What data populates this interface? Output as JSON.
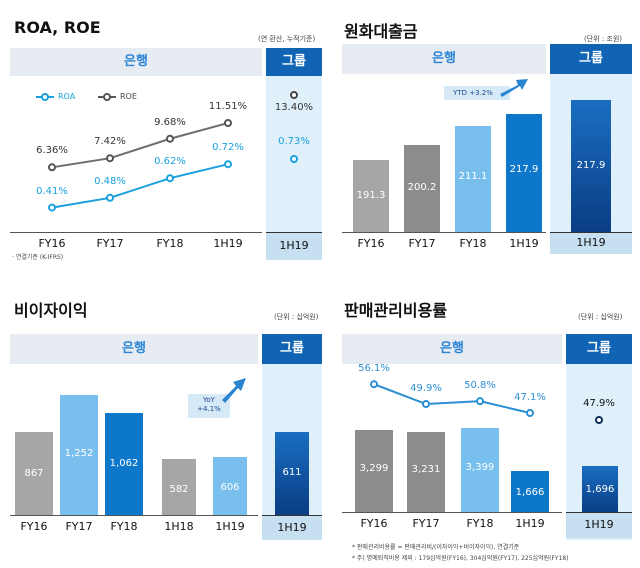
{
  "panels": {
    "roa": {
      "title": "ROA, ROE",
      "unit": "(연 환산, 누적기준)",
      "bank": "은행",
      "group": "그룹",
      "legend_roa": "ROA",
      "legend_roe": "ROE",
      "note": "· 연결기준 (K-IFRS)",
      "group_period": "1H19",
      "group_roe": "13.40%",
      "group_roa": "0.73%"
    },
    "loans": {
      "title": "원화대출금",
      "unit": "(단위 : 조원)",
      "bank": "은행",
      "group": "그룹",
      "tag": "YTD +3.2%",
      "group_period": "1H19",
      "group_value": "217.9"
    },
    "nii": {
      "title": "비이자이익",
      "unit": "(단위 : 십억원)",
      "bank": "은행",
      "group": "그룹",
      "tag_line1": "YoY",
      "tag_line2": "+4.1%",
      "group_period": "1H19",
      "group_value": "611"
    },
    "cir": {
      "title": "판매관리비용률",
      "unit": "(단위 : 십억원)",
      "bank": "은행",
      "group": "그룹",
      "note1": "*  판매관리비용률 = 판매관리비/(이자이익+비이자이익), 연결기준",
      "note2": "*  주) 명예퇴직비용 제외 : 179십억원(FY16), 304십억원(FY17), 225십억원(FY18)",
      "group_period": "1H19",
      "group_ratio": "47.9%",
      "group_value": "1,696"
    }
  },
  "chart_data": [
    {
      "type": "line",
      "title": "ROA, ROE",
      "categories": [
        "FY16",
        "FY17",
        "FY18",
        "1H19"
      ],
      "series": [
        {
          "name": "ROE",
          "values": [
            6.36,
            7.42,
            9.68,
            11.51
          ],
          "labels": [
            "6.36%",
            "7.42%",
            "9.68%",
            "11.51%"
          ]
        },
        {
          "name": "ROA",
          "values": [
            0.41,
            0.48,
            0.62,
            0.72
          ],
          "labels": [
            "0.41%",
            "0.48%",
            "0.62%",
            "0.72%"
          ]
        }
      ],
      "group": {
        "category": "1H19",
        "ROE": 13.4,
        "ROA": 0.73
      }
    },
    {
      "type": "bar",
      "title": "원화대출금",
      "categories": [
        "FY16",
        "FY17",
        "FY18",
        "1H19"
      ],
      "values": [
        191.3,
        200.2,
        211.1,
        217.9
      ],
      "labels": [
        "191.3",
        "200.2",
        "211.1",
        "217.9"
      ],
      "ylim": [
        150,
        225
      ],
      "group": {
        "category": "1H19",
        "value": 217.9
      }
    },
    {
      "type": "bar",
      "title": "비이자이익",
      "categories": [
        "FY16",
        "FY17",
        "FY18",
        "1H18",
        "1H19"
      ],
      "values": [
        867,
        1252,
        1062,
        582,
        606
      ],
      "labels": [
        "867",
        "1,252",
        "1,062",
        "582",
        "606"
      ],
      "ylim": [
        0,
        1300
      ],
      "group": {
        "category": "1H19",
        "value": 611
      }
    },
    {
      "type": "bar",
      "title": "판매관리비용률",
      "categories": [
        "FY16",
        "FY17",
        "FY18",
        "1H19"
      ],
      "values": [
        3299,
        3231,
        3399,
        1666
      ],
      "labels": [
        "3,299",
        "3,231",
        "3,399",
        "1,666"
      ],
      "ratio": [
        56.1,
        49.9,
        50.8,
        47.1
      ],
      "ratio_labels": [
        "56.1%",
        "49.9%",
        "50.8%",
        "47.1%"
      ],
      "ylim": [
        0,
        3600
      ],
      "group": {
        "category": "1H19",
        "value": 1696,
        "ratio": 47.9
      }
    }
  ],
  "colors": {
    "bank_header_text": "#2a83d4",
    "group_header": "#1164b4",
    "roa_line": "#1aa0dc",
    "roe_line": "#555555",
    "gray1": "#a6a6a6",
    "gray2": "#8c8c8c",
    "light_blue": "#79bfee",
    "blue": "#0d78c9",
    "navy": "#0a3d83"
  }
}
